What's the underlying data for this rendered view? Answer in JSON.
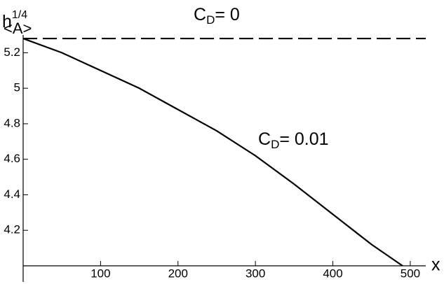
{
  "chart_data": {
    "type": "line",
    "y_label": {
      "main": "h",
      "sup": "1/4",
      "rest": "<A>"
    },
    "x_label": "x",
    "xlim": [
      0,
      520
    ],
    "ylim": [
      4.0,
      5.3
    ],
    "xticks": [
      100,
      200,
      300,
      400,
      500
    ],
    "yticks": [
      4.2,
      4.4,
      4.6,
      4.8,
      5,
      5.2
    ],
    "series": [
      {
        "main": "C",
        "sub": "D",
        "rest": "= 0",
        "color": "#000000",
        "dashed": true,
        "x": [
          0,
          520
        ],
        "values": [
          5.28,
          5.28
        ]
      },
      {
        "main": "C",
        "sub": "D",
        "rest": "= 0.01",
        "color": "#000000",
        "dashed": false,
        "x": [
          0,
          50,
          100,
          150,
          200,
          250,
          300,
          350,
          400,
          450,
          490
        ],
        "values": [
          5.28,
          5.2,
          5.1,
          5.0,
          4.88,
          4.76,
          4.62,
          4.46,
          4.29,
          4.12,
          4.0
        ]
      }
    ]
  }
}
